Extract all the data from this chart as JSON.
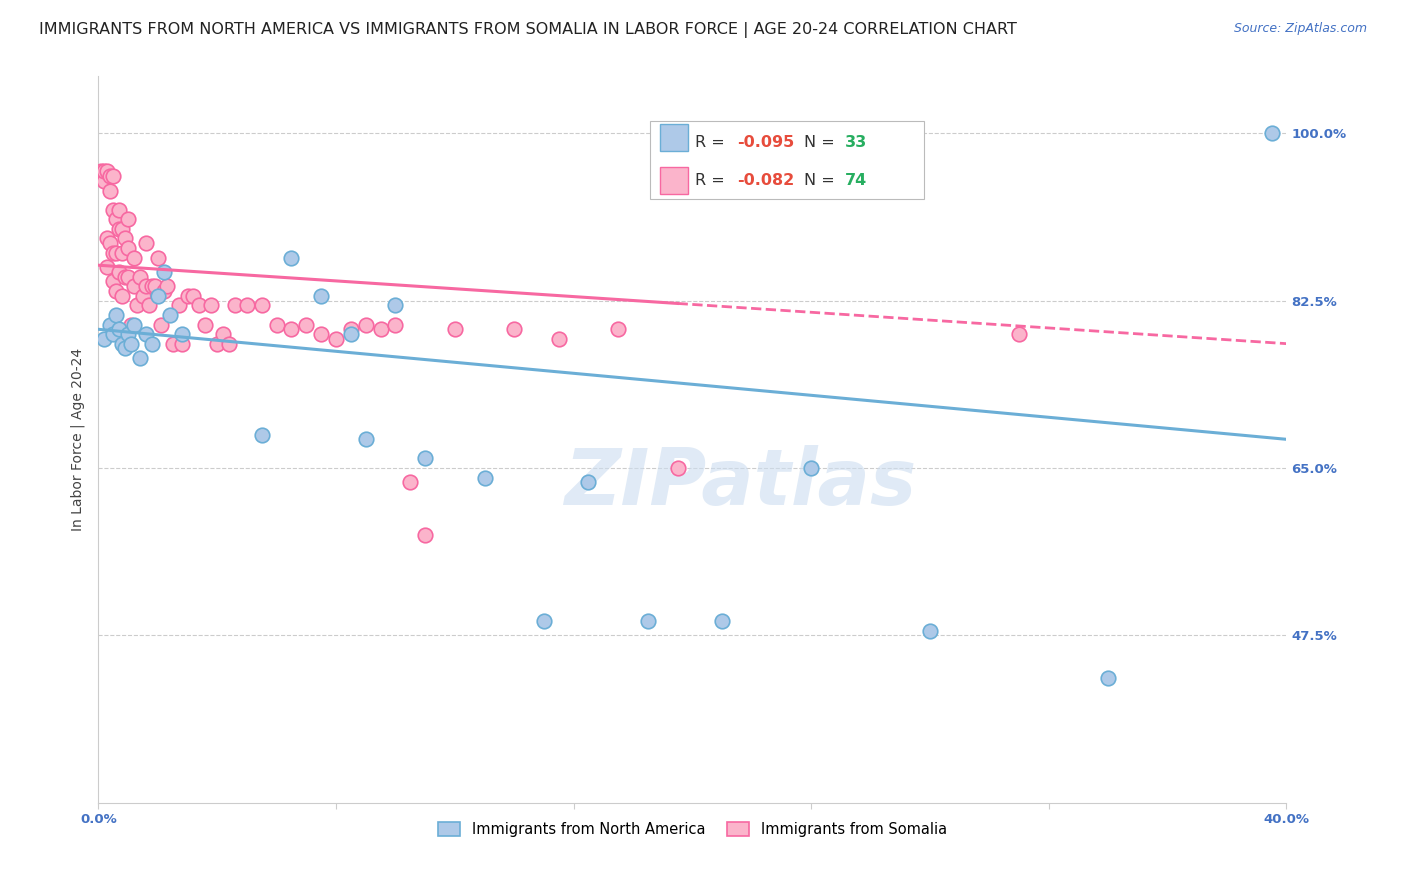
{
  "title": "IMMIGRANTS FROM NORTH AMERICA VS IMMIGRANTS FROM SOMALIA IN LABOR FORCE | AGE 20-24 CORRELATION CHART",
  "source": "Source: ZipAtlas.com",
  "ylabel": "In Labor Force | Age 20-24",
  "xlim": [
    0.0,
    0.4
  ],
  "ylim": [
    0.3,
    1.06
  ],
  "yticks": [
    0.475,
    0.65,
    0.825,
    1.0
  ],
  "ytick_labels": [
    "47.5%",
    "65.0%",
    "82.5%",
    "100.0%"
  ],
  "xticks": [
    0.0,
    0.08,
    0.16,
    0.24,
    0.32,
    0.4
  ],
  "xtick_labels": [
    "0.0%",
    "",
    "",
    "",
    "",
    "40.0%"
  ],
  "north_america": {
    "R": -0.095,
    "N": 33,
    "color": "#6baed6",
    "color_fill": "#aec9e8",
    "label": "Immigrants from North America",
    "x": [
      0.002,
      0.004,
      0.005,
      0.006,
      0.007,
      0.008,
      0.009,
      0.01,
      0.011,
      0.012,
      0.014,
      0.016,
      0.018,
      0.02,
      0.022,
      0.024,
      0.028,
      0.055,
      0.065,
      0.075,
      0.085,
      0.09,
      0.1,
      0.11,
      0.13,
      0.15,
      0.165,
      0.185,
      0.21,
      0.24,
      0.28,
      0.34,
      0.395
    ],
    "y": [
      0.785,
      0.8,
      0.79,
      0.81,
      0.795,
      0.78,
      0.775,
      0.79,
      0.78,
      0.8,
      0.765,
      0.79,
      0.78,
      0.83,
      0.855,
      0.81,
      0.79,
      0.685,
      0.87,
      0.83,
      0.79,
      0.68,
      0.82,
      0.66,
      0.64,
      0.49,
      0.635,
      0.49,
      0.49,
      0.65,
      0.48,
      0.43,
      1.0
    ]
  },
  "somalia": {
    "R": -0.082,
    "N": 74,
    "color": "#f768a1",
    "color_fill": "#fbb4cb",
    "label": "Immigrants from Somalia",
    "x": [
      0.001,
      0.001,
      0.002,
      0.002,
      0.003,
      0.003,
      0.003,
      0.004,
      0.004,
      0.004,
      0.005,
      0.005,
      0.005,
      0.005,
      0.006,
      0.006,
      0.006,
      0.007,
      0.007,
      0.007,
      0.008,
      0.008,
      0.008,
      0.009,
      0.009,
      0.01,
      0.01,
      0.01,
      0.011,
      0.012,
      0.012,
      0.013,
      0.014,
      0.015,
      0.016,
      0.016,
      0.017,
      0.018,
      0.019,
      0.02,
      0.021,
      0.022,
      0.023,
      0.025,
      0.027,
      0.028,
      0.03,
      0.032,
      0.034,
      0.036,
      0.038,
      0.04,
      0.042,
      0.044,
      0.046,
      0.05,
      0.055,
      0.06,
      0.065,
      0.07,
      0.075,
      0.08,
      0.085,
      0.09,
      0.095,
      0.1,
      0.105,
      0.11,
      0.12,
      0.14,
      0.155,
      0.175,
      0.195,
      0.31
    ],
    "y": [
      0.96,
      0.955,
      0.95,
      0.96,
      0.96,
      0.89,
      0.86,
      0.955,
      0.94,
      0.885,
      0.955,
      0.92,
      0.875,
      0.845,
      0.91,
      0.875,
      0.835,
      0.92,
      0.9,
      0.855,
      0.9,
      0.875,
      0.83,
      0.89,
      0.85,
      0.91,
      0.88,
      0.85,
      0.8,
      0.87,
      0.84,
      0.82,
      0.85,
      0.83,
      0.885,
      0.84,
      0.82,
      0.84,
      0.84,
      0.87,
      0.8,
      0.835,
      0.84,
      0.78,
      0.82,
      0.78,
      0.83,
      0.83,
      0.82,
      0.8,
      0.82,
      0.78,
      0.79,
      0.78,
      0.82,
      0.82,
      0.82,
      0.8,
      0.795,
      0.8,
      0.79,
      0.785,
      0.795,
      0.8,
      0.795,
      0.8,
      0.635,
      0.58,
      0.795,
      0.795,
      0.785,
      0.795,
      0.65,
      0.79
    ]
  },
  "watermark": "ZIPatlas",
  "background_color": "#ffffff",
  "grid_color": "#cccccc",
  "axis_color": "#cccccc",
  "tick_color": "#4472c4",
  "title_fontsize": 11.5,
  "source_fontsize": 9,
  "axis_label_fontsize": 10,
  "tick_fontsize": 9.5
}
